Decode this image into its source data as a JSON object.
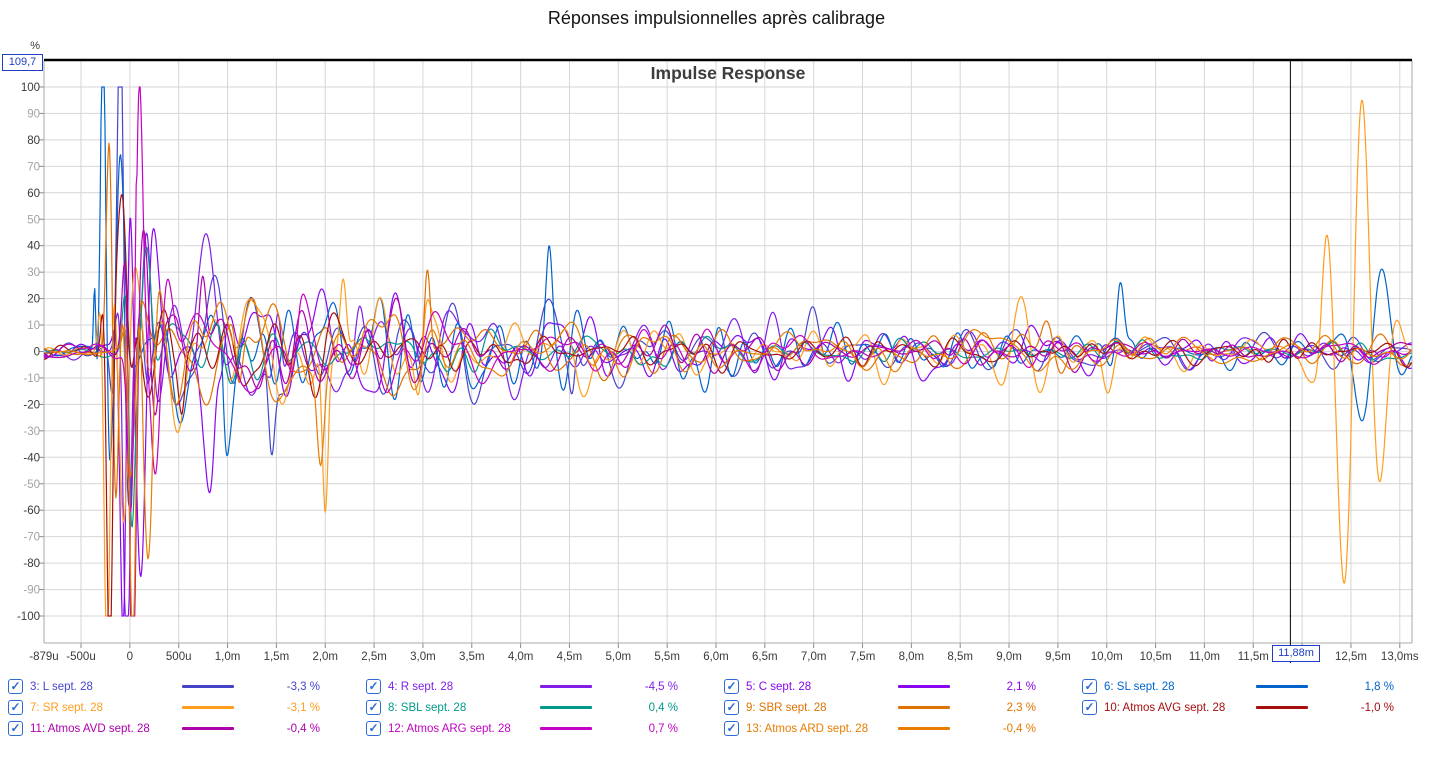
{
  "page_title": "Réponses impulsionnelles après calibrage",
  "cursor": {
    "t_ms": 11.88,
    "x_label": "11,88m",
    "y_label": "109,7"
  },
  "checkbox_glyph": "✓",
  "chart_data": {
    "type": "line",
    "title": "Impulse Response",
    "y_unit": "%",
    "ylim": [
      -110.2,
      110.2
    ],
    "x_range_ms": [
      -0.879,
      13.125
    ],
    "grid_step_ms": 0.5,
    "grid_step_y": 10,
    "y_ticks_major": [
      100,
      80,
      60,
      40,
      20,
      0,
      -20,
      -40,
      -60,
      -80,
      -100
    ],
    "y_ticks_minor": [
      90,
      70,
      50,
      30,
      10,
      -10,
      -30,
      -50,
      -70,
      -90
    ],
    "x_ticks": [
      {
        "t": -0.879,
        "label": "-879u"
      },
      {
        "t": -0.5,
        "label": "-500u"
      },
      {
        "t": 0,
        "label": "0"
      },
      {
        "t": 0.5,
        "label": "500u"
      },
      {
        "t": 1.0,
        "label": "1,0m"
      },
      {
        "t": 1.5,
        "label": "1,5m"
      },
      {
        "t": 2.0,
        "label": "2,0m"
      },
      {
        "t": 2.5,
        "label": "2,5m"
      },
      {
        "t": 3.0,
        "label": "3,0m"
      },
      {
        "t": 3.5,
        "label": "3,5m"
      },
      {
        "t": 4.0,
        "label": "4,0m"
      },
      {
        "t": 4.5,
        "label": "4,5m"
      },
      {
        "t": 5.0,
        "label": "5,0m"
      },
      {
        "t": 5.5,
        "label": "5,5m"
      },
      {
        "t": 6.0,
        "label": "6,0m"
      },
      {
        "t": 6.5,
        "label": "6,5m"
      },
      {
        "t": 7.0,
        "label": "7,0m"
      },
      {
        "t": 7.5,
        "label": "7,5m"
      },
      {
        "t": 8.0,
        "label": "8,0m"
      },
      {
        "t": 8.5,
        "label": "8,5m"
      },
      {
        "t": 9.0,
        "label": "9,0m"
      },
      {
        "t": 9.5,
        "label": "9,5m"
      },
      {
        "t": 10.0,
        "label": "10,0m"
      },
      {
        "t": 10.5,
        "label": "10,5m"
      },
      {
        "t": 11.0,
        "label": "11,0m"
      },
      {
        "t": 11.5,
        "label": "11,5m"
      },
      {
        "t": 12.0,
        "label": "12,0m"
      },
      {
        "t": 12.5,
        "label": "12,5m"
      },
      {
        "t": 13.0,
        "label": "13,0ms"
      }
    ],
    "series": [
      {
        "name": "3: L sept. 28",
        "color": "#4545cc",
        "value_label": "-3,3 %",
        "checked": true,
        "synth": {
          "seed": 11,
          "t0": -0.1,
          "w": 0.07,
          "f": 4.3,
          "amp": 122,
          "tau": 2.6,
          "na": 17,
          "floor": 3,
          "bursts": [
            {
              "t": 1.45,
              "a": 26,
              "w": 0.05,
              "f": 3
            },
            {
              "t": 4.55,
              "a": 20,
              "w": 0.05,
              "f": 3.2
            },
            {
              "t": 7.0,
              "a": 12,
              "w": 0.12,
              "f": 2.4
            }
          ]
        }
      },
      {
        "name": "4: R sept. 28",
        "color": "#7f1fe8",
        "value_label": "-4,5 %",
        "checked": true,
        "synth": {
          "seed": 22,
          "t0": -0.02,
          "w": 0.08,
          "f": 3.9,
          "amp": 126,
          "tau": 2.7,
          "na": 17,
          "floor": 3,
          "bursts": [
            {
              "t": 1.52,
              "a": 30,
              "w": 0.06,
              "f": 2.8
            },
            {
              "t": 2.32,
              "a": 24,
              "w": 0.08,
              "f": 2.5
            },
            {
              "t": 6.6,
              "a": 13,
              "w": 0.15,
              "f": 2.2
            }
          ]
        }
      },
      {
        "name": "5: C sept. 28",
        "color": "#8a05f0",
        "value_label": "2,1 %",
        "checked": true,
        "synth": {
          "seed": 33,
          "t0": -0.05,
          "w": 0.07,
          "f": 4.4,
          "amp": 123,
          "tau": 2.4,
          "na": 15,
          "floor": 3,
          "bursts": [
            {
              "t": 0.9,
              "a": 26,
              "w": 0.06,
              "f": 3
            }
          ]
        }
      },
      {
        "name": "6: SL sept. 28",
        "color": "#0063cc",
        "value_label": "1,8 %",
        "checked": true,
        "synth": {
          "seed": 44,
          "t0": -0.27,
          "w": 0.055,
          "f": 4.6,
          "amp": 130,
          "tau": 2.8,
          "na": 18,
          "floor": 3.4,
          "bursts": [
            {
              "t": -0.36,
              "a": 30,
              "w": 0.018,
              "f": 6,
              "ph": 1.57
            },
            {
              "t": 0.95,
              "a": 30,
              "w": 0.05,
              "f": 3.4
            },
            {
              "t": 4.3,
              "a": 27,
              "w": 0.05,
              "f": 3
            },
            {
              "t": 10.15,
              "a": 26,
              "w": 0.07,
              "f": 3
            },
            {
              "t": 12.72,
              "a": 33,
              "w": 0.26,
              "f": 2.1
            },
            {
              "t": 5.9,
              "a": 12,
              "w": 0.2,
              "f": 2
            }
          ]
        }
      },
      {
        "name": "7: SR sept. 28",
        "color": "#ff9d1e",
        "value_label": "-3,1 %",
        "checked": true,
        "synth": {
          "seed": 55,
          "t0": -0.235,
          "w": 0.06,
          "f": 4.3,
          "amp": 127,
          "tau": 2.6,
          "na": 20,
          "floor": 3.5,
          "bursts": [
            {
              "t": 2.0,
              "a": 66,
              "w": 0.05,
              "f": 2.6,
              "ph": -1.57
            },
            {
              "t": 2.2,
              "a": 38,
              "w": 0.06,
              "f": 2.6
            },
            {
              "t": 3.0,
              "a": 30,
              "w": 0.07,
              "f": 2.6
            },
            {
              "t": 9.15,
              "a": 22,
              "w": 0.3,
              "f": 2.4
            },
            {
              "t": 12.2,
              "a": 20,
              "w": 0.08,
              "f": 2.6
            },
            {
              "t": 12.55,
              "a": 100,
              "w": 0.32,
              "f": 2.5,
              "ph": 0.5
            },
            {
              "t": 10.0,
              "a": 18,
              "w": 0.12,
              "f": 2.4
            }
          ]
        }
      },
      {
        "name": "8: SBL sept. 28",
        "color": "#00998c",
        "value_label": "0,4 %",
        "checked": true,
        "synth": {
          "seed": 66,
          "t0": 0.0,
          "w": 0.06,
          "f": 4.0,
          "amp": 72,
          "tau": 2.0,
          "na": 8,
          "floor": 2.5,
          "bursts": []
        }
      },
      {
        "name": "9: SBR sept. 28",
        "color": "#e07200",
        "value_label": "2,3 %",
        "checked": true,
        "synth": {
          "seed": 77,
          "t0": -0.18,
          "w": 0.065,
          "f": 4.1,
          "amp": 123,
          "tau": 2.5,
          "na": 17,
          "floor": 3,
          "bursts": [
            {
              "t": 3.05,
              "a": 34,
              "w": 0.05,
              "f": 3
            },
            {
              "t": 9.4,
              "a": 16,
              "w": 0.18,
              "f": 2.6
            },
            {
              "t": 1.1,
              "a": 24,
              "w": 0.06,
              "f": 2.8
            }
          ]
        }
      },
      {
        "name": "10: Atmos AVG sept. 28",
        "color": "#a50f0f",
        "value_label": "-1,0 %",
        "checked": true,
        "synth": {
          "seed": 88,
          "t0": -0.21,
          "w": 0.06,
          "f": 4.5,
          "amp": 120,
          "tau": 1.9,
          "na": 12,
          "floor": 2.8,
          "bursts": [
            {
              "t": 0.55,
              "a": 20,
              "w": 0.05,
              "f": 3
            }
          ]
        }
      },
      {
        "name": "11: Atmos AVD sept. 28",
        "color": "#ad00ad",
        "value_label": "-0,4 %",
        "checked": true,
        "synth": {
          "seed": 99,
          "t0": 0.02,
          "w": 0.075,
          "f": 4.2,
          "amp": 127,
          "tau": 2.2,
          "na": 14,
          "floor": 2.8,
          "bursts": [
            {
              "t": 0.75,
              "a": 25,
              "w": 0.06,
              "f": 3
            }
          ]
        }
      },
      {
        "name": "12: Atmos ARG sept. 28",
        "color": "#c203c2",
        "value_label": "0,7 %",
        "checked": true,
        "synth": {
          "seed": 110,
          "t0": 0.07,
          "w": 0.08,
          "f": 4.0,
          "amp": 129,
          "tau": 2.2,
          "na": 13,
          "floor": 2.8,
          "bursts": [
            {
              "t": 1.7,
              "a": 18,
              "w": 0.08,
              "f": 2.6
            }
          ]
        }
      },
      {
        "name": "13: Atmos ARD sept. 28",
        "color": "#e87d00",
        "value_label": "-0,4 %",
        "checked": true,
        "synth": {
          "seed": 121,
          "t0": 0.04,
          "w": 0.065,
          "f": 4.3,
          "amp": 121,
          "tau": 2.4,
          "na": 16,
          "floor": 3,
          "bursts": [
            {
              "t": 1.95,
              "a": 30,
              "w": 0.06,
              "f": 2.7
            }
          ]
        }
      }
    ],
    "legend_rows": [
      [
        0,
        1,
        2,
        3
      ],
      [
        4,
        5,
        6,
        7
      ],
      [
        8,
        9,
        10
      ]
    ]
  },
  "colors": {
    "cursor_readout": "#1f3fc4",
    "grid": "#d6d6d6",
    "axis_major_label": "#3a3a3a",
    "axis_minor_label": "#a2a2a2",
    "border": "#a8a8a8",
    "top_border": "#000000",
    "checkbox": "#2e6bd4"
  }
}
